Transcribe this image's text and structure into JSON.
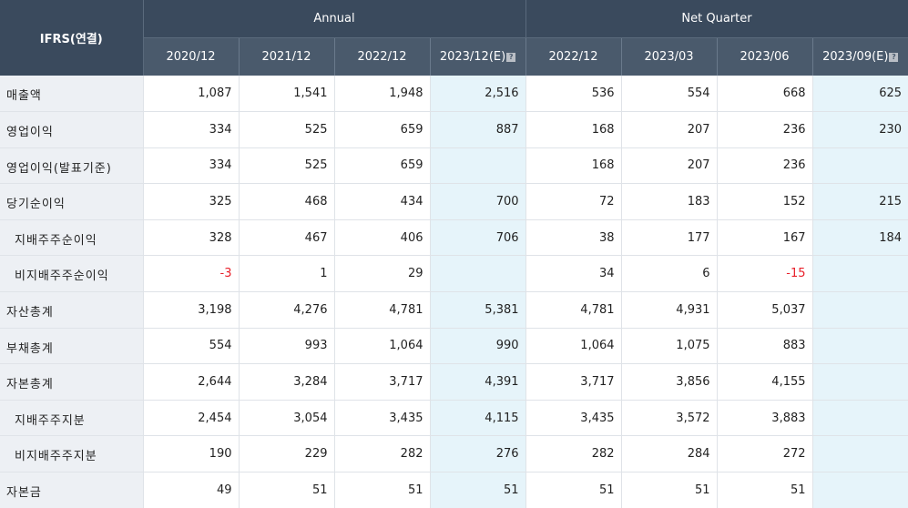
{
  "header": {
    "corner_label": "IFRS(연결)",
    "annual_label": "Annual",
    "quarter_label": "Net Quarter",
    "help_glyph": "?",
    "annual_periods": [
      "2020/12",
      "2021/12",
      "2022/12",
      "2023/12(E)"
    ],
    "quarter_periods": [
      "2022/12",
      "2023/03",
      "2023/06",
      "2023/09(E)"
    ]
  },
  "colors": {
    "header_bg": "#3a4a5d",
    "subheader_bg": "#4a5a6c",
    "label_bg": "#edf0f4",
    "estimate_bg": "#e6f4fa",
    "negative_text": "#e8202a"
  },
  "rows": [
    {
      "label": "매출액",
      "values": [
        "1,087",
        "1,541",
        "1,948",
        "2,516",
        "536",
        "554",
        "668",
        "625"
      ]
    },
    {
      "label": "영업이익",
      "values": [
        "334",
        "525",
        "659",
        "887",
        "168",
        "207",
        "236",
        "230"
      ]
    },
    {
      "label": "영업이익(발표기준)",
      "values": [
        "334",
        "525",
        "659",
        "",
        "168",
        "207",
        "236",
        ""
      ]
    },
    {
      "label": "당기순이익",
      "values": [
        "325",
        "468",
        "434",
        "700",
        "72",
        "183",
        "152",
        "215"
      ]
    },
    {
      "label": "지배주주순이익",
      "values": [
        "328",
        "467",
        "406",
        "706",
        "38",
        "177",
        "167",
        "184"
      ]
    },
    {
      "label": "비지배주주순이익",
      "values": [
        "-3",
        "1",
        "29",
        "",
        "34",
        "6",
        "-15",
        ""
      ]
    },
    {
      "label": "자산총계",
      "values": [
        "3,198",
        "4,276",
        "4,781",
        "5,381",
        "4,781",
        "4,931",
        "5,037",
        ""
      ]
    },
    {
      "label": "부채총계",
      "values": [
        "554",
        "993",
        "1,064",
        "990",
        "1,064",
        "1,075",
        "883",
        ""
      ]
    },
    {
      "label": "자본총계",
      "values": [
        "2,644",
        "3,284",
        "3,717",
        "4,391",
        "3,717",
        "3,856",
        "4,155",
        ""
      ]
    },
    {
      "label": "지배주주지분",
      "values": [
        "2,454",
        "3,054",
        "3,435",
        "4,115",
        "3,435",
        "3,572",
        "3,883",
        ""
      ]
    },
    {
      "label": "비지배주주지분",
      "values": [
        "190",
        "229",
        "282",
        "276",
        "282",
        "284",
        "272",
        ""
      ]
    },
    {
      "label": "자본금",
      "values": [
        "49",
        "51",
        "51",
        "51",
        "51",
        "51",
        "51",
        ""
      ]
    }
  ]
}
